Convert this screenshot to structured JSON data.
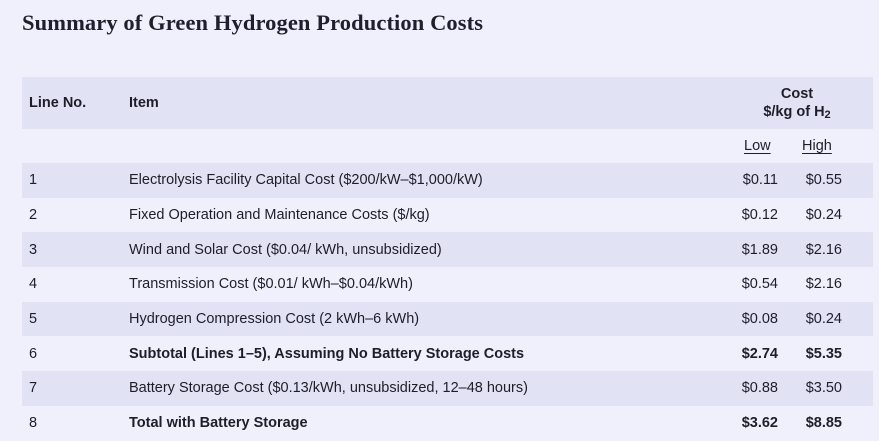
{
  "title": "Summary of Green Hydrogen Production Costs",
  "headers": {
    "line_no": "Line No.",
    "item": "Item",
    "cost_line1": "Cost",
    "cost_line2": "$/kg of H",
    "cost_sub": "2",
    "low": "Low",
    "high": "High"
  },
  "rows": [
    {
      "line": "1",
      "item": "Electrolysis Facility Capital Cost ($200/kW–$1,000/kW)",
      "low": "$0.11",
      "high": "$0.55",
      "bold": false
    },
    {
      "line": "2",
      "item": "Fixed Operation and Maintenance Costs ($/kg)",
      "low": "$0.12",
      "high": "$0.24",
      "bold": false
    },
    {
      "line": "3",
      "item": "Wind and Solar Cost ($0.04/ kWh, unsubsidized)",
      "low": "$1.89",
      "high": "$2.16",
      "bold": false
    },
    {
      "line": "4",
      "item": "Transmission Cost ($0.01/ kWh–$0.04/kWh)",
      "low": "$0.54",
      "high": "$2.16",
      "bold": false
    },
    {
      "line": "5",
      "item": "Hydrogen Compression Cost (2 kWh–6 kWh)",
      "low": "$0.08",
      "high": "$0.24",
      "bold": false
    },
    {
      "line": "6",
      "item": "Subtotal (Lines 1–5), Assuming No Battery Storage Costs",
      "low": "$2.74",
      "high": "$5.35",
      "bold": true
    },
    {
      "line": "7",
      "item": "Battery Storage Cost ($0.13/kWh, unsubsidized, 12–48 hours)",
      "low": "$0.88",
      "high": "$3.50",
      "bold": false
    },
    {
      "line": "8",
      "item": "Total with Battery Storage",
      "low": "$3.62",
      "high": "$8.85",
      "bold": true
    }
  ]
}
